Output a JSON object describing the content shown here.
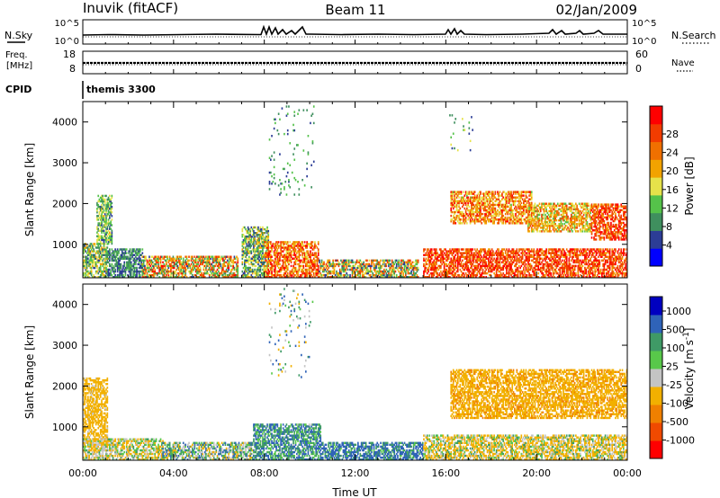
{
  "header": {
    "station": "Inuvik (fitACF)",
    "beam": "Beam 11",
    "date": "02/Jan/2009"
  },
  "aux_panels": {
    "nsky_label": "N.Sky",
    "nsearch_label": "N.Search",
    "nsky_ticks": [
      "10^5",
      "10^0"
    ],
    "nsearch_ticks": [
      "10^5",
      "10^0"
    ],
    "freq_label_1": "Freq.",
    "freq_label_2": "[MHz]",
    "freq_ticks": [
      "18",
      "8"
    ],
    "nave_label": "Nave",
    "nave_ticks": [
      "60",
      "0"
    ],
    "cpid_label": "CPID",
    "cpid_value": "themis 3300"
  },
  "colors": {
    "power_scale": [
      "#0000ff",
      "#2c3d96",
      "#3f8f5e",
      "#55c24a",
      "#e6e24a",
      "#f2a300",
      "#f07000",
      "#f23c00",
      "#ff0000"
    ],
    "velocity_scale": [
      "#0000c0",
      "#2f63b8",
      "#3f9a66",
      "#58c84a",
      "#c4c4c4",
      "#f2b000",
      "#f08000",
      "#f04a00",
      "#ff0000"
    ],
    "line": "#000000"
  },
  "chart_data": [
    {
      "type": "heatmap",
      "name": "power",
      "ylabel": "Slant Range [km]",
      "xlabel": "Time UT",
      "x_ticks": [
        "00:00",
        "04:00",
        "08:00",
        "12:00",
        "16:00",
        "20:00",
        "00:00"
      ],
      "y_ticks": [
        "1000",
        "2000",
        "3000",
        "4000"
      ],
      "ylim": [
        180,
        4500
      ],
      "xlim_hours": [
        0,
        24
      ],
      "colorbar_label": "Power [dB]",
      "colorbar_ticks": [
        "4",
        "8",
        "12",
        "16",
        "20",
        "24",
        "28"
      ],
      "colorbar_range": [
        0,
        32
      ],
      "regions": [
        {
          "t": [
            0.0,
            1.1
          ],
          "r": [
            180,
            1000
          ],
          "v": [
            6,
            20
          ]
        },
        {
          "t": [
            0.6,
            1.3
          ],
          "r": [
            1000,
            2200
          ],
          "v": [
            6,
            18
          ]
        },
        {
          "t": [
            1.1,
            2.6
          ],
          "r": [
            180,
            900
          ],
          "v": [
            4,
            12
          ]
        },
        {
          "t": [
            2.6,
            6.8
          ],
          "r": [
            180,
            700
          ],
          "v": [
            6,
            30
          ]
        },
        {
          "t": [
            7.0,
            8.2
          ],
          "r": [
            180,
            1400
          ],
          "v": [
            4,
            20
          ]
        },
        {
          "t": [
            8.0,
            10.4
          ],
          "r": [
            180,
            1050
          ],
          "v": [
            16,
            32
          ]
        },
        {
          "t": [
            10.4,
            14.8
          ],
          "r": [
            180,
            600
          ],
          "v": [
            4,
            28
          ]
        },
        {
          "t": [
            15.0,
            24.0
          ],
          "r": [
            180,
            900
          ],
          "v": [
            20,
            32
          ]
        },
        {
          "t": [
            16.2,
            19.8
          ],
          "r": [
            1500,
            2300
          ],
          "v": [
            14,
            30
          ]
        },
        {
          "t": [
            19.6,
            22.4
          ],
          "r": [
            1300,
            2000
          ],
          "v": [
            12,
            26
          ]
        },
        {
          "t": [
            22.4,
            24.0
          ],
          "r": [
            1100,
            2000
          ],
          "v": [
            20,
            32
          ]
        },
        {
          "t": [
            16.0,
            17.2
          ],
          "r": [
            3200,
            4200
          ],
          "v": [
            4,
            16
          ]
        },
        {
          "t": [
            8.2,
            10.2
          ],
          "r": [
            2200,
            4400
          ],
          "v": [
            4,
            14
          ]
        }
      ]
    },
    {
      "type": "heatmap",
      "name": "velocity",
      "ylabel": "Slant Range [km]",
      "xlabel": "Time UT",
      "x_ticks": [
        "00:00",
        "04:00",
        "08:00",
        "12:00",
        "16:00",
        "20:00",
        "00:00"
      ],
      "y_ticks": [
        "1000",
        "2000",
        "3000",
        "4000"
      ],
      "ylim": [
        180,
        4500
      ],
      "xlim_hours": [
        0,
        24
      ],
      "colorbar_label": "Velocity [m s^-1]",
      "colorbar_ticks": [
        "1000",
        "500",
        "100",
        "25",
        "-25",
        "-100",
        "-500",
        "-1000"
      ],
      "regions": [
        {
          "t": [
            0.0,
            1.1
          ],
          "r": [
            500,
            2200
          ],
          "v": [
            -300,
            -80
          ]
        },
        {
          "t": [
            0.0,
            3.5
          ],
          "r": [
            180,
            700
          ],
          "v": [
            -200,
            50
          ]
        },
        {
          "t": [
            3.5,
            7.5
          ],
          "r": [
            180,
            600
          ],
          "v": [
            -150,
            150
          ]
        },
        {
          "t": [
            7.5,
            10.5
          ],
          "r": [
            180,
            1050
          ],
          "v": [
            -30,
            200
          ]
        },
        {
          "t": [
            10.5,
            15.0
          ],
          "r": [
            180,
            600
          ],
          "v": [
            0,
            300
          ]
        },
        {
          "t": [
            15.0,
            24.0
          ],
          "r": [
            180,
            800
          ],
          "v": [
            -300,
            80
          ]
        },
        {
          "t": [
            16.2,
            24.0
          ],
          "r": [
            1200,
            2400
          ],
          "v": [
            -350,
            -100
          ]
        },
        {
          "t": [
            8.2,
            10.2
          ],
          "r": [
            2200,
            4400
          ],
          "v": [
            -200,
            200
          ]
        }
      ]
    }
  ]
}
